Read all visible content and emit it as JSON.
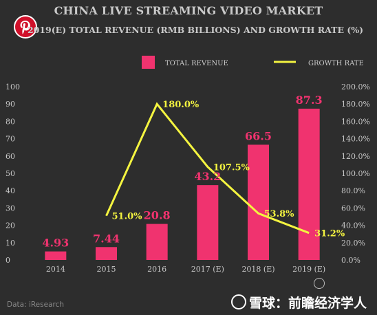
{
  "chart_data": {
    "type": "bar+line",
    "title": "CHINA LIVE STREAMING VIDEO MARKET",
    "subtitle": "2019(E) TOTAL REVENUE (RMB BILLIONS) AND GROWTH RATE (%)",
    "categories": [
      "2014",
      "2015",
      "2016",
      "2017 (E)",
      "2018 (E)",
      "2019 (E)"
    ],
    "series": [
      {
        "name": "TOTAL REVENUE",
        "type": "bar",
        "axis": "left",
        "values": [
          4.93,
          7.44,
          20.8,
          43.2,
          66.5,
          87.3
        ],
        "labels": [
          "4.93",
          "7.44",
          "20.8",
          "43.2",
          "66.5",
          "87.3"
        ]
      },
      {
        "name": "GROWTH RATE",
        "type": "line",
        "axis": "right",
        "values": [
          null,
          51.0,
          180.0,
          107.5,
          53.8,
          31.2
        ],
        "labels": [
          "",
          "51.0%",
          "180.0%",
          "107.5%",
          "53.8%",
          "31.2%"
        ]
      }
    ],
    "y_left": {
      "ylim": [
        0,
        100
      ],
      "ticks": [
        "0",
        "10",
        "20",
        "30",
        "40",
        "50",
        "60",
        "70",
        "80",
        "90",
        "100"
      ]
    },
    "y_right": {
      "ylim": [
        0,
        200
      ],
      "ticks": [
        "0.0%",
        "20.0%",
        "40.0%",
        "60.0%",
        "80.0%",
        "100.0%",
        "120.0%",
        "140.0%",
        "160.0%",
        "180.0%",
        "200.0%"
      ]
    },
    "grid": false,
    "legend_position": "top-right",
    "colors": {
      "bar": "#f0336f",
      "line": "#f4f440",
      "background": "#2d2d2d",
      "text": "#c9c9c9"
    }
  },
  "footer": {
    "source": "Data: iResearch",
    "watermark": "雪球：前瞻经济学人"
  },
  "icons": {
    "badge": "pinterest-icon",
    "watermark_logo": "snowball-logo-icon",
    "stamp": "stamp-icon"
  }
}
